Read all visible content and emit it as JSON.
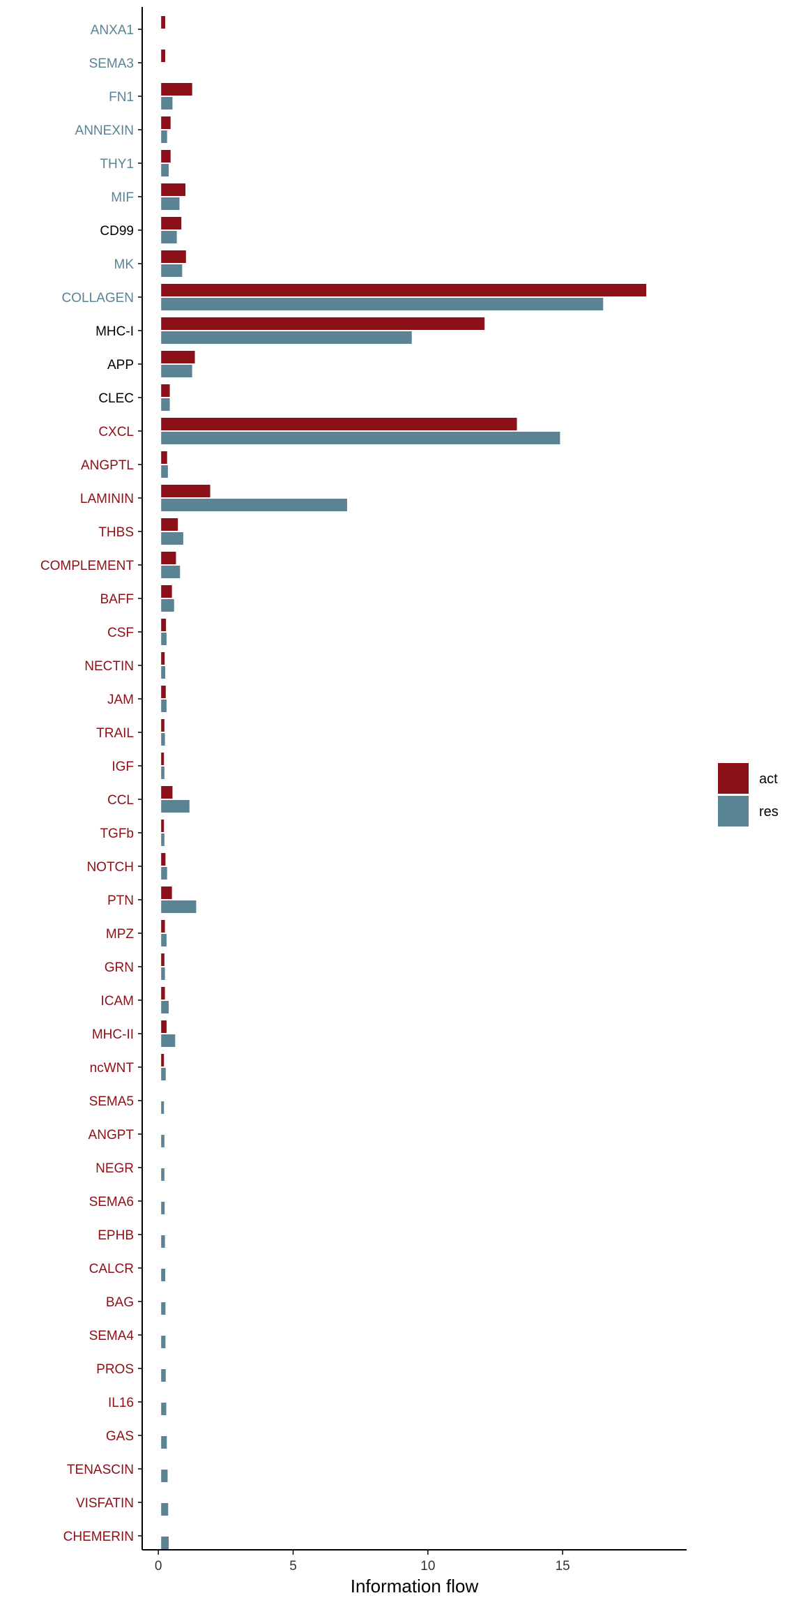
{
  "chart_data": {
    "type": "bar",
    "orientation": "horizontal",
    "xlabel": "Information flow",
    "ylabel": "",
    "xlim": [
      -0.6,
      19.6
    ],
    "xticks": [
      0,
      5,
      10,
      15
    ],
    "grid": false,
    "legend_position": "right",
    "colors": {
      "act": "#8B1017",
      "res": "#5A8394",
      "label_act": "#8B1017",
      "label_res": "#5A8394",
      "label_neutral": "#000000"
    },
    "categories": [
      "ANXA1",
      "SEMA3",
      "FN1",
      "ANNEXIN",
      "THY1",
      "MIF",
      "CD99",
      "MK",
      "COLLAGEN",
      "MHC-I",
      "APP",
      "CLEC",
      "CXCL",
      "ANGPTL",
      "LAMININ",
      "THBS",
      "COMPLEMENT",
      "BAFF",
      "CSF",
      "NECTIN",
      "JAM",
      "TRAIL",
      "IGF",
      "CCL",
      "TGFb",
      "NOTCH",
      "PTN",
      "MPZ",
      "GRN",
      "ICAM",
      "MHC-II",
      "ncWNT",
      "SEMA5",
      "ANGPT",
      "NEGR",
      "SEMA6",
      "EPHB",
      "CALCR",
      "BAG",
      "SEMA4",
      "PROS",
      "IL16",
      "GAS",
      "TENASCIN",
      "VISFATIN",
      "CHEMERIN"
    ],
    "label_colors": [
      "res",
      "res",
      "res",
      "res",
      "res",
      "res",
      "neutral",
      "res",
      "res",
      "neutral",
      "neutral",
      "neutral",
      "act",
      "act",
      "act",
      "act",
      "act",
      "act",
      "act",
      "act",
      "act",
      "act",
      "act",
      "act",
      "act",
      "act",
      "act",
      "act",
      "act",
      "act",
      "act",
      "act",
      "act",
      "act",
      "act",
      "act",
      "act",
      "act",
      "act",
      "act",
      "act",
      "act",
      "act",
      "act",
      "act",
      "act"
    ],
    "series": [
      {
        "name": "act",
        "values": [
          0.15,
          0.15,
          1.15,
          0.35,
          0.35,
          0.9,
          0.75,
          0.92,
          18.0,
          12.0,
          1.25,
          0.32,
          13.2,
          0.22,
          1.82,
          0.62,
          0.55,
          0.4,
          0.18,
          0.13,
          0.17,
          0.12,
          0.1,
          0.42,
          0.09,
          0.16,
          0.4,
          0.14,
          0.12,
          0.14,
          0.2,
          0.1,
          0,
          0,
          0,
          0,
          0,
          0,
          0,
          0,
          0,
          0,
          0,
          0,
          0,
          0
        ]
      },
      {
        "name": "res",
        "values": [
          0,
          0,
          0.42,
          0.22,
          0.28,
          0.68,
          0.58,
          0.78,
          16.4,
          9.3,
          1.15,
          0.32,
          14.8,
          0.25,
          6.9,
          0.82,
          0.7,
          0.48,
          0.2,
          0.15,
          0.2,
          0.14,
          0.12,
          1.05,
          0.12,
          0.22,
          1.3,
          0.2,
          0.14,
          0.28,
          0.52,
          0.17,
          0.09,
          0.12,
          0.12,
          0.13,
          0.14,
          0.15,
          0.16,
          0.16,
          0.17,
          0.19,
          0.21,
          0.24,
          0.26,
          0.28
        ]
      }
    ]
  }
}
